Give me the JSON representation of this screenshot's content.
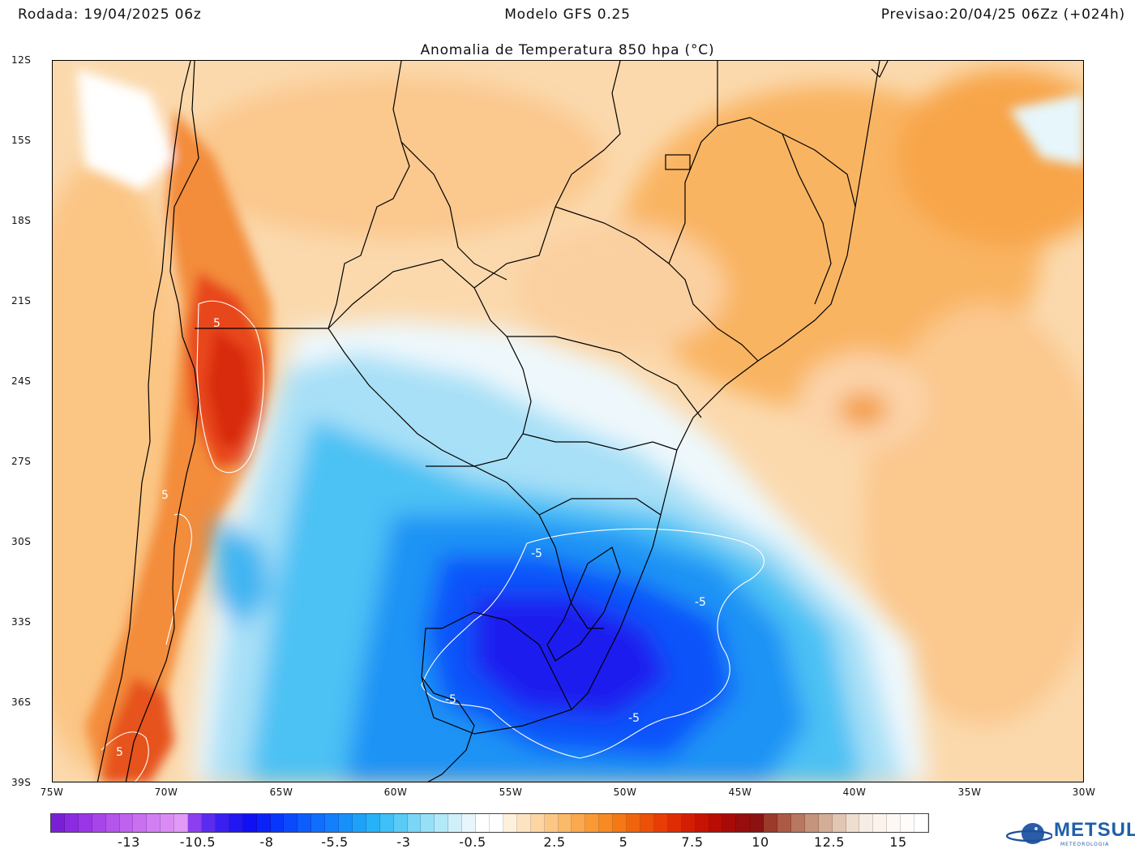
{
  "header": {
    "left": "Rodada: 19/04/2025 06z",
    "center": "Modelo GFS 0.25",
    "right": "Previsao:20/04/25 06Zz (+024h)"
  },
  "map_title": "Anomalia de Temperatura 850 hpa (°C)",
  "latitude_labels": [
    "12S",
    "15S",
    "18S",
    "21S",
    "24S",
    "27S",
    "30S",
    "33S",
    "36S",
    "39S"
  ],
  "longitude_labels": [
    "75W",
    "70W",
    "65W",
    "60W",
    "55W",
    "50W",
    "45W",
    "40W",
    "35W",
    "30W"
  ],
  "extent": {
    "lon_min": -75,
    "lon_max": -30,
    "lat_min": -39,
    "lat_max": -12
  },
  "contour_labels": [
    "5",
    "5",
    "5",
    "-5",
    "-5",
    "-5",
    "-5"
  ],
  "colorbar": {
    "tick_labels": [
      "-13",
      "-10.5",
      "-8",
      "-5.5",
      "-3",
      "-0.5",
      "2.5",
      "5",
      "7.5",
      "10",
      "12.5",
      "15"
    ],
    "tick_values": [
      -13,
      -10.5,
      -8,
      -5.5,
      -3,
      -0.5,
      2.5,
      5,
      7.5,
      10,
      12.5,
      15
    ],
    "min": -16,
    "max": 16,
    "step": 0.5,
    "colors": [
      "#7a1fd6",
      "#8a2be2",
      "#9a35e8",
      "#a845ea",
      "#b455ec",
      "#bf62ef",
      "#c970f1",
      "#d27ff3",
      "#da8cf4",
      "#e19af6",
      "#8c3ff0",
      "#5a2cf0",
      "#3a1ff0",
      "#2117f2",
      "#1010f5",
      "#0a22f8",
      "#0836fb",
      "#0a4afc",
      "#0c5dfc",
      "#106efc",
      "#147ffb",
      "#1890fa",
      "#1ea2f8",
      "#26b2f6",
      "#3fc0f6",
      "#5bcbf6",
      "#7ad5f6",
      "#96dff7",
      "#b3e8f8",
      "#cfeff9",
      "#e6f6fb",
      "#ffffff",
      "#ffffff",
      "#fff0dc",
      "#fee3c0",
      "#fdd5a3",
      "#fcc785",
      "#fbb96a",
      "#faa94f",
      "#f99a36",
      "#f78a22",
      "#f47815",
      "#f0640e",
      "#ec5009",
      "#e83d06",
      "#e02c04",
      "#d41e03",
      "#c61303",
      "#b80c05",
      "#a80a08",
      "#980d0d",
      "#8c1212",
      "#9b3a2a",
      "#aa5a45",
      "#b87760",
      "#c6937c",
      "#d4ad98",
      "#e1c6b4",
      "#edded0",
      "#f6ede5",
      "#fbf3ec",
      "#fdf8f4",
      "#fffcf9",
      "#ffffff"
    ]
  },
  "logo": {
    "text": "METSUL",
    "subtext": "METEOROLOGIA"
  }
}
